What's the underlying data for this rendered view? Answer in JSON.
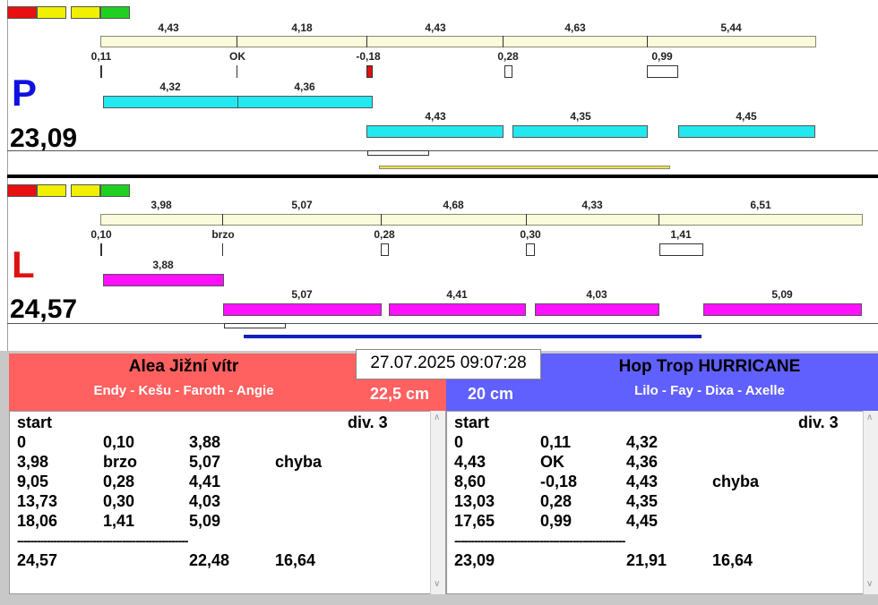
{
  "left_lane": {
    "letter": "P",
    "letter_color": "#1010e0",
    "total": "23,09",
    "upper_values": [
      "4,43",
      "4,18",
      "4,43",
      "4,63",
      "5,44"
    ],
    "reaction_labels": [
      "0,11",
      "OK",
      "-0,18",
      "0,28",
      "0,99"
    ],
    "middle_values": [
      "4,32",
      "4,36"
    ],
    "lower_values": [
      "4,43",
      "4,35",
      "4,45"
    ]
  },
  "right_lane": {
    "letter": "L",
    "letter_color": "#e01010",
    "total": "24,57",
    "upper_values": [
      "3,98",
      "5,07",
      "4,68",
      "4,33",
      "6,51"
    ],
    "reaction_labels": [
      "0,10",
      "brzo",
      "0,28",
      "0,30",
      "1,41"
    ],
    "middle_values": [
      "3,88"
    ],
    "lower_values": [
      "5,07",
      "4,41",
      "4,03",
      "5,09"
    ]
  },
  "lamp_colors": [
    "#e81010",
    "#f0f000",
    "#f0f000",
    "#20d020"
  ],
  "datetime": "27.07.2025 09:07:28",
  "team_left": {
    "name": "Alea Jižní vítr",
    "members": "Endy - Kešu - Faroth - Angie",
    "height": "22,5 cm",
    "color": "#ff6060",
    "table": {
      "start": "start",
      "division": "div.  3",
      "rows": [
        [
          "0",
          "0,10",
          "3,88",
          ""
        ],
        [
          "3,98",
          "brzo",
          "5,07",
          "chyba"
        ],
        [
          "9,05",
          "0,28",
          "4,41",
          ""
        ],
        [
          "13,73",
          "0,30",
          "4,03",
          ""
        ],
        [
          "18,06",
          "1,41",
          "5,09",
          ""
        ]
      ],
      "separator": "----------------------------------------------------",
      "totals": [
        "24,57",
        "",
        "22,48",
        "16,64"
      ]
    }
  },
  "team_right": {
    "name": "Hop Trop HURRICANE",
    "members": "Lilo - Fay - Dixa - Axelle",
    "height": "20 cm",
    "color": "#6060ff",
    "table": {
      "start": "start",
      "division": "div.  3",
      "rows": [
        [
          "0",
          "0,11",
          "4,32",
          ""
        ],
        [
          "4,43",
          "OK",
          "4,36",
          ""
        ],
        [
          "8,60",
          "-0,18",
          "4,43",
          "chyba"
        ],
        [
          "13,03",
          "0,28",
          "4,35",
          ""
        ],
        [
          "17,65",
          "0,99",
          "4,45",
          ""
        ]
      ],
      "separator": "----------------------------------------------------",
      "totals": [
        "23,09",
        "",
        "21,91",
        "16,64"
      ]
    }
  }
}
